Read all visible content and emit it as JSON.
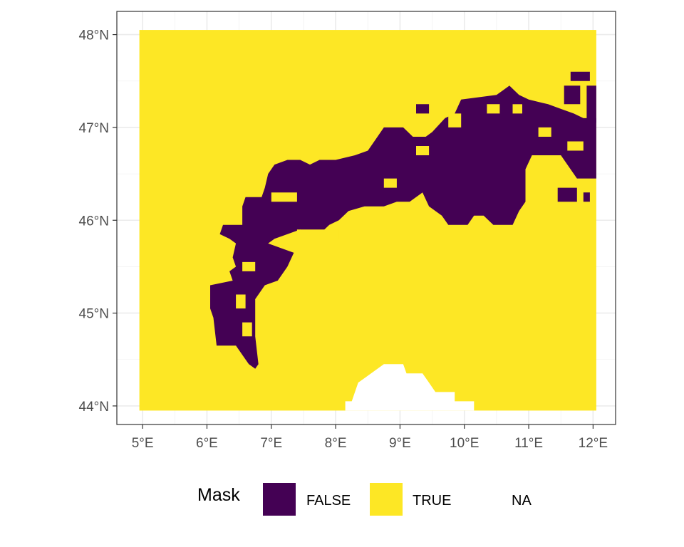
{
  "chart_data": {
    "type": "raster_map",
    "x_axis": {
      "ticks": [
        5,
        6,
        7,
        8,
        9,
        10,
        11,
        12
      ],
      "tick_labels": [
        "5°E",
        "6°E",
        "7°E",
        "8°E",
        "9°E",
        "10°E",
        "11°E",
        "12°E"
      ],
      "range": [
        4.6,
        12.35
      ]
    },
    "y_axis": {
      "ticks": [
        44,
        45,
        46,
        47,
        48
      ],
      "tick_labels": [
        "44°N",
        "45°N",
        "46°N",
        "47°N",
        "48°N"
      ],
      "range": [
        43.8,
        48.25
      ]
    },
    "grid": true,
    "raster_extent": {
      "lon": [
        4.95,
        12.05
      ],
      "lat": [
        43.95,
        48.05
      ]
    },
    "legend": {
      "title": "Mask",
      "position": "bottom",
      "entries": [
        {
          "label": "FALSE",
          "color": "#440154"
        },
        {
          "label": "TRUE",
          "color": "#FDE725"
        },
        {
          "label": "NA",
          "color": "#FFFFFF"
        }
      ]
    },
    "false_region": {
      "value": "FALSE",
      "color": "#440154",
      "boundary_lonlat": [
        [
          6.2,
          45.85
        ],
        [
          6.25,
          45.95
        ],
        [
          6.55,
          45.95
        ],
        [
          6.55,
          46.15
        ],
        [
          6.6,
          46.25
        ],
        [
          6.85,
          46.25
        ],
        [
          6.9,
          46.35
        ],
        [
          6.95,
          46.5
        ],
        [
          7.05,
          46.6
        ],
        [
          7.25,
          46.65
        ],
        [
          7.45,
          46.65
        ],
        [
          7.6,
          46.6
        ],
        [
          7.75,
          46.65
        ],
        [
          8.0,
          46.65
        ],
        [
          8.3,
          46.7
        ],
        [
          8.5,
          46.75
        ],
        [
          8.6,
          46.85
        ],
        [
          8.75,
          47.0
        ],
        [
          9.05,
          47.0
        ],
        [
          9.2,
          46.9
        ],
        [
          9.4,
          46.9
        ],
        [
          9.5,
          46.95
        ],
        [
          9.7,
          47.1
        ],
        [
          9.85,
          47.15
        ],
        [
          9.95,
          47.3
        ],
        [
          10.5,
          47.35
        ],
        [
          10.7,
          47.45
        ],
        [
          10.85,
          47.35
        ],
        [
          11.0,
          47.3
        ],
        [
          11.3,
          47.25
        ],
        [
          11.5,
          47.2
        ],
        [
          11.7,
          47.15
        ],
        [
          11.85,
          47.1
        ],
        [
          12.05,
          47.1
        ],
        [
          12.05,
          46.45
        ],
        [
          11.75,
          46.45
        ],
        [
          11.5,
          46.7
        ],
        [
          11.25,
          46.7
        ],
        [
          11.05,
          46.7
        ],
        [
          10.95,
          46.55
        ],
        [
          10.95,
          46.2
        ],
        [
          10.85,
          46.1
        ],
        [
          10.75,
          45.95
        ],
        [
          10.45,
          45.95
        ],
        [
          10.3,
          46.05
        ],
        [
          10.15,
          46.05
        ],
        [
          10.05,
          45.95
        ],
        [
          9.85,
          45.95
        ],
        [
          9.75,
          45.95
        ],
        [
          9.65,
          46.05
        ],
        [
          9.45,
          46.15
        ],
        [
          9.35,
          46.3
        ],
        [
          9.15,
          46.2
        ],
        [
          8.95,
          46.2
        ],
        [
          8.75,
          46.15
        ],
        [
          8.45,
          46.15
        ],
        [
          8.2,
          46.1
        ],
        [
          8.05,
          46.0
        ],
        [
          7.9,
          45.95
        ],
        [
          7.75,
          45.85
        ],
        [
          7.55,
          45.85
        ],
        [
          7.45,
          45.9
        ],
        [
          7.25,
          45.85
        ],
        [
          7.05,
          45.8
        ],
        [
          6.95,
          45.75
        ],
        [
          7.35,
          45.65
        ],
        [
          7.25,
          45.5
        ],
        [
          7.1,
          45.35
        ],
        [
          6.9,
          45.3
        ],
        [
          6.75,
          45.15
        ],
        [
          6.75,
          44.75
        ],
        [
          6.8,
          44.45
        ],
        [
          6.75,
          44.4
        ],
        [
          6.65,
          44.45
        ],
        [
          6.55,
          44.55
        ],
        [
          6.45,
          44.65
        ],
        [
          6.15,
          44.65
        ],
        [
          6.1,
          44.95
        ],
        [
          6.05,
          45.05
        ],
        [
          6.05,
          45.3
        ],
        [
          6.4,
          45.35
        ],
        [
          6.35,
          45.45
        ],
        [
          6.45,
          45.5
        ],
        [
          6.4,
          45.6
        ],
        [
          6.45,
          45.75
        ],
        [
          6.35,
          45.8
        ],
        [
          6.2,
          45.85
        ]
      ],
      "patches_lonlat": [
        [
          [
            11.55,
            47.25
          ],
          [
            11.8,
            47.25
          ],
          [
            11.8,
            47.45
          ],
          [
            11.55,
            47.45
          ]
        ],
        [
          [
            11.65,
            47.5
          ],
          [
            11.95,
            47.5
          ],
          [
            11.95,
            47.6
          ],
          [
            11.65,
            47.6
          ]
        ],
        [
          [
            11.9,
            47.05
          ],
          [
            12.05,
            47.05
          ],
          [
            12.05,
            47.45
          ],
          [
            11.9,
            47.45
          ]
        ],
        [
          [
            11.45,
            46.2
          ],
          [
            11.75,
            46.2
          ],
          [
            11.75,
            46.35
          ],
          [
            11.45,
            46.35
          ]
        ],
        [
          [
            11.85,
            46.2
          ],
          [
            11.95,
            46.2
          ],
          [
            11.95,
            46.3
          ],
          [
            11.85,
            46.3
          ]
        ],
        [
          [
            9.25,
            47.15
          ],
          [
            9.45,
            47.15
          ],
          [
            9.45,
            47.25
          ],
          [
            9.25,
            47.25
          ]
        ]
      ]
    },
    "true_holes_lonlat": [
      [
        [
          9.75,
          47.0
        ],
        [
          9.95,
          47.0
        ],
        [
          9.95,
          47.15
        ],
        [
          9.75,
          47.15
        ]
      ],
      [
        [
          10.35,
          47.15
        ],
        [
          10.55,
          47.15
        ],
        [
          10.55,
          47.25
        ],
        [
          10.35,
          47.25
        ]
      ],
      [
        [
          10.75,
          47.15
        ],
        [
          10.9,
          47.15
        ],
        [
          10.9,
          47.25
        ],
        [
          10.75,
          47.25
        ]
      ],
      [
        [
          11.15,
          46.9
        ],
        [
          11.35,
          46.9
        ],
        [
          11.35,
          47.0
        ],
        [
          11.15,
          47.0
        ]
      ],
      [
        [
          11.6,
          46.75
        ],
        [
          11.85,
          46.75
        ],
        [
          11.85,
          46.85
        ],
        [
          11.6,
          46.85
        ]
      ],
      [
        [
          9.25,
          46.7
        ],
        [
          9.45,
          46.7
        ],
        [
          9.45,
          46.8
        ],
        [
          9.25,
          46.8
        ]
      ],
      [
        [
          8.75,
          46.35
        ],
        [
          8.95,
          46.35
        ],
        [
          8.95,
          46.45
        ],
        [
          8.75,
          46.45
        ]
      ],
      [
        [
          7.0,
          46.2
        ],
        [
          7.4,
          46.2
        ],
        [
          7.4,
          46.3
        ],
        [
          7.0,
          46.3
        ]
      ],
      [
        [
          6.55,
          45.45
        ],
        [
          6.75,
          45.45
        ],
        [
          6.75,
          45.55
        ],
        [
          6.55,
          45.55
        ]
      ],
      [
        [
          6.45,
          45.05
        ],
        [
          6.6,
          45.05
        ],
        [
          6.6,
          45.2
        ],
        [
          6.45,
          45.2
        ]
      ],
      [
        [
          6.55,
          44.75
        ],
        [
          6.7,
          44.75
        ],
        [
          6.7,
          44.9
        ],
        [
          6.55,
          44.9
        ]
      ],
      [
        [
          7.4,
          45.9
        ],
        [
          8.05,
          45.9
        ],
        [
          8.05,
          45.8
        ],
        [
          7.4,
          45.8
        ]
      ]
    ],
    "na_region": {
      "value": "NA",
      "color": "#FFFFFF",
      "boundary_lonlat": [
        [
          8.15,
          43.95
        ],
        [
          8.15,
          44.05
        ],
        [
          8.25,
          44.05
        ],
        [
          8.35,
          44.25
        ],
        [
          8.55,
          44.35
        ],
        [
          8.75,
          44.45
        ],
        [
          9.05,
          44.45
        ],
        [
          9.1,
          44.35
        ],
        [
          9.35,
          44.35
        ],
        [
          9.45,
          44.25
        ],
        [
          9.55,
          44.15
        ],
        [
          9.85,
          44.15
        ],
        [
          9.85,
          44.05
        ],
        [
          10.15,
          44.05
        ],
        [
          10.15,
          43.95
        ]
      ]
    }
  }
}
